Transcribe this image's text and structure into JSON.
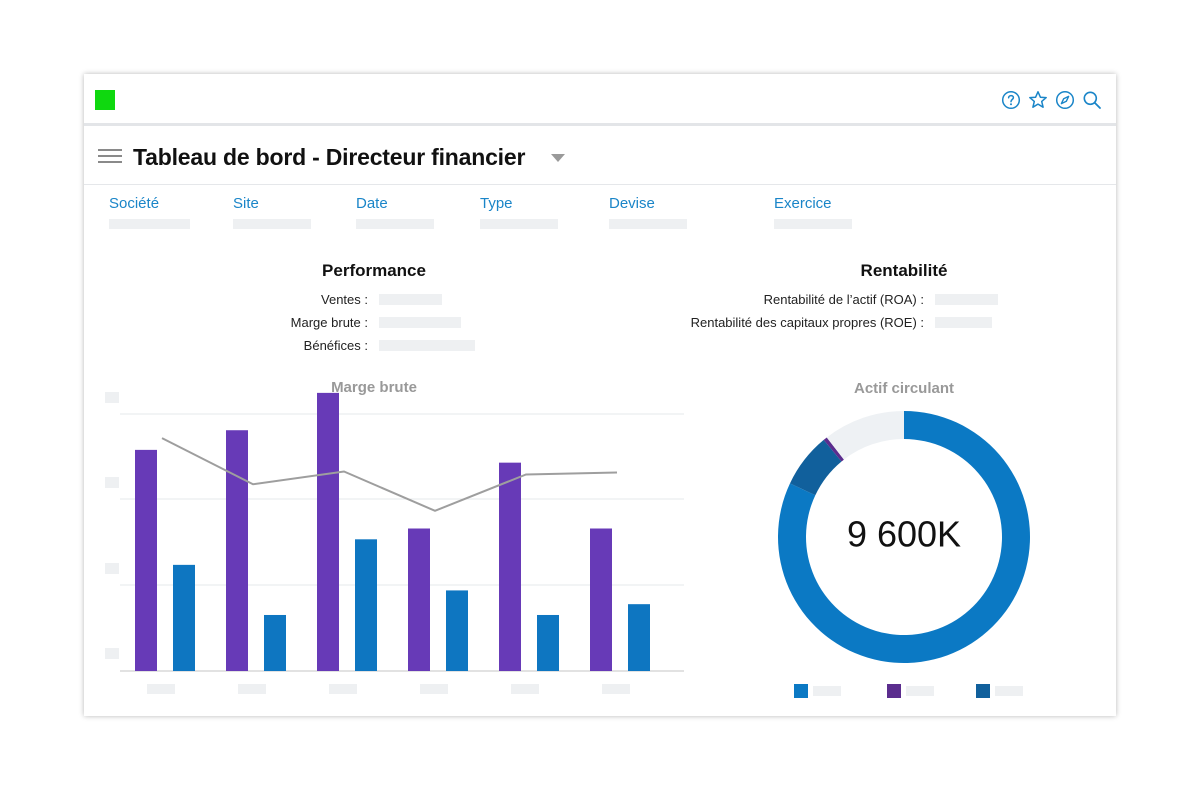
{
  "header": {
    "logo_color": "#0fd80f",
    "icons": [
      "help-icon",
      "star-icon",
      "compass-icon",
      "search-icon"
    ]
  },
  "page": {
    "title": "Tableau de bord - Directeur financier"
  },
  "filters": [
    {
      "label": "Société"
    },
    {
      "label": "Site"
    },
    {
      "label": "Date"
    },
    {
      "label": "Type"
    },
    {
      "label": "Devise"
    },
    {
      "label": "Exercice"
    }
  ],
  "performance": {
    "title": "Performance",
    "rows": [
      {
        "label": "Ventes :"
      },
      {
        "label": "Marge brute :"
      },
      {
        "label": "Bénéfices :"
      }
    ]
  },
  "rentabilite": {
    "title": "Rentabilité",
    "rows": [
      {
        "label": "Rentabilité de l’actif (ROA) :"
      },
      {
        "label": "Rentabilité des capitaux propres (ROE) :"
      }
    ]
  },
  "chart_data": [
    {
      "type": "bar",
      "title": "Marge brute",
      "categories": [
        "",
        "",
        "",
        "",
        "",
        ""
      ],
      "series": [
        {
          "color": "#673ab7",
          "values": [
            225,
            245,
            283,
            145,
            212,
            145
          ]
        },
        {
          "color": "#0e76c1",
          "values": [
            108,
            57,
            134,
            82,
            57,
            68
          ]
        }
      ],
      "line": {
        "color": "#9e9e9e",
        "values": [
          237,
          190,
          203,
          163,
          200,
          202
        ]
      },
      "ylim": [
        0,
        290
      ],
      "grid": true
    },
    {
      "type": "pie",
      "title": "Actif circulant",
      "center_label": "9 600K",
      "slices": [
        {
          "color": "#0b79c4",
          "value": 82
        },
        {
          "color": "#11609c",
          "value": 7
        },
        {
          "color": "#5b2d8e",
          "value": 0.5
        },
        {
          "color": "#eef1f4",
          "value": 10.5
        }
      ],
      "legend": [
        {
          "color": "#0b79c4"
        },
        {
          "color": "#5b2d8e"
        },
        {
          "color": "#11609c"
        }
      ]
    }
  ]
}
